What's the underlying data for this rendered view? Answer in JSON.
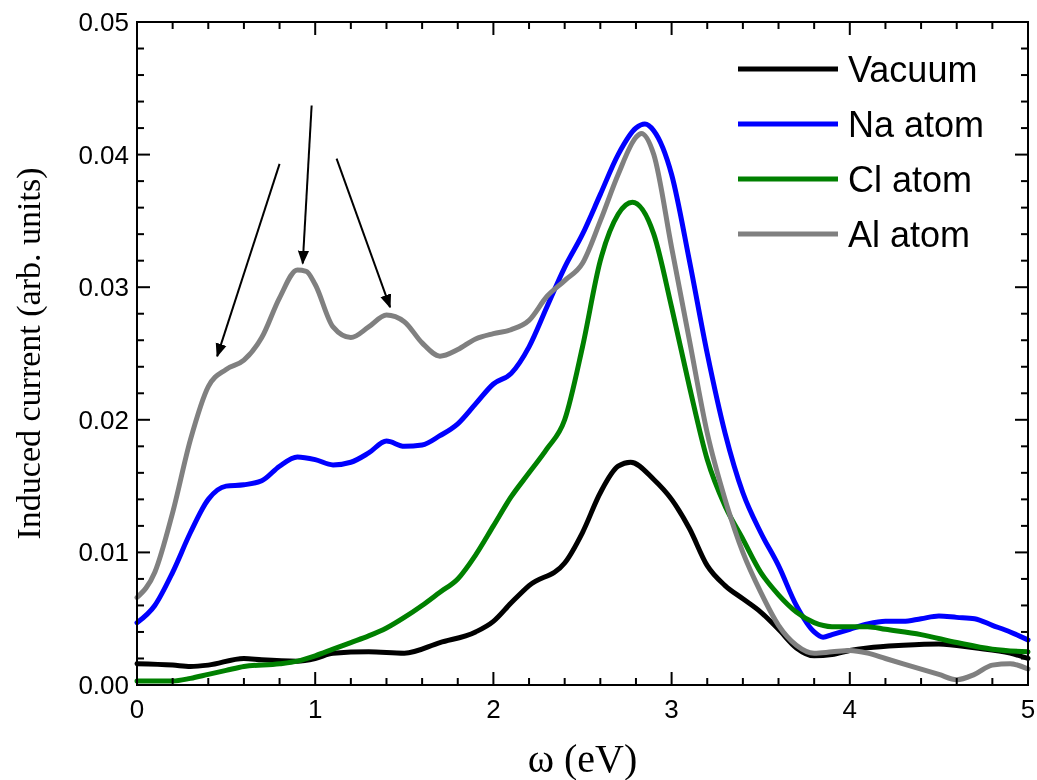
{
  "chart_data": {
    "type": "line",
    "xlabel": "ω (eV)",
    "ylabel": "Induced current (arb. units)",
    "legend": "top right",
    "grid": false,
    "line_style": "solid",
    "xlim": [
      0,
      5
    ],
    "ylim": [
      0,
      0.05
    ],
    "xticks": [
      0,
      {
        "value": 0.2,
        "label": null
      },
      {
        "value": 0.4,
        "label": null
      },
      {
        "value": 0.6,
        "label": null
      },
      {
        "value": 0.8,
        "label": null
      },
      1,
      {
        "value": 1.2,
        "label": null
      },
      {
        "value": 1.4,
        "label": null
      },
      {
        "value": 1.6,
        "label": null
      },
      {
        "value": 1.8,
        "label": null
      },
      2,
      {
        "value": 2.2,
        "label": null
      },
      {
        "value": 2.4,
        "label": null
      },
      {
        "value": 2.6,
        "label": null
      },
      {
        "value": 2.8,
        "label": null
      },
      3,
      {
        "value": 3.2,
        "label": null
      },
      {
        "value": 3.4,
        "label": null
      },
      {
        "value": 3.6,
        "label": null
      },
      {
        "value": 3.8,
        "label": null
      },
      4,
      {
        "value": 4.2,
        "label": null
      },
      {
        "value": 4.4,
        "label": null
      },
      {
        "value": 4.6,
        "label": null
      },
      {
        "value": 4.8,
        "label": null
      },
      5
    ],
    "yticks": [
      {
        "value": 0,
        "label": "0.00"
      },
      {
        "value": 0.002,
        "label": null
      },
      {
        "value": 0.004,
        "label": null
      },
      {
        "value": 0.006,
        "label": null
      },
      {
        "value": 0.008,
        "label": null
      },
      {
        "value": 0.01,
        "label": "0.01"
      },
      {
        "value": 0.012,
        "label": null
      },
      {
        "value": 0.014,
        "label": null
      },
      {
        "value": 0.016,
        "label": null
      },
      {
        "value": 0.018,
        "label": null
      },
      {
        "value": 0.02,
        "label": "0.02"
      },
      {
        "value": 0.022,
        "label": null
      },
      {
        "value": 0.024,
        "label": null
      },
      {
        "value": 0.026,
        "label": null
      },
      {
        "value": 0.028,
        "label": null
      },
      {
        "value": 0.03,
        "label": "0.03"
      },
      {
        "value": 0.032,
        "label": null
      },
      {
        "value": 0.034,
        "label": null
      },
      {
        "value": 0.036,
        "label": null
      },
      {
        "value": 0.038,
        "label": null
      },
      {
        "value": 0.04,
        "label": "0.04"
      },
      {
        "value": 0.042,
        "label": null
      },
      {
        "value": 0.044,
        "label": null
      },
      {
        "value": 0.046,
        "label": null
      },
      {
        "value": 0.048,
        "label": null
      },
      {
        "value": 0.05,
        "label": "0.05"
      }
    ],
    "series": [
      {
        "name": "Vacuum",
        "color": "#000000",
        "x": [
          0,
          0.2,
          0.3,
          0.4,
          0.6,
          0.7,
          0.9,
          1.0,
          1.1,
          1.3,
          1.5,
          1.7,
          1.9,
          2.0,
          2.1,
          2.2,
          2.4,
          2.5,
          2.6,
          2.7,
          2.77,
          2.9,
          3.0,
          3.1,
          3.2,
          3.3,
          3.4,
          3.5,
          3.6,
          3.7,
          3.8,
          3.9,
          4.0,
          4.1,
          4.3,
          4.5,
          4.7,
          4.9,
          5.0
        ],
        "values": [
          0.0016,
          0.0015,
          0.0014,
          0.0015,
          0.002,
          0.0019,
          0.0018,
          0.002,
          0.0024,
          0.0025,
          0.0024,
          0.0032,
          0.004,
          0.0048,
          0.0062,
          0.0075,
          0.0092,
          0.0115,
          0.0145,
          0.0165,
          0.0168,
          0.0155,
          0.014,
          0.0118,
          0.009,
          0.0075,
          0.0065,
          0.0055,
          0.0042,
          0.0028,
          0.0022,
          0.0023,
          0.0026,
          0.0028,
          0.003,
          0.0031,
          0.0028,
          0.0024,
          0.002
        ]
      },
      {
        "name": "Na atom",
        "color": "#0000ff",
        "x": [
          0,
          0.1,
          0.2,
          0.3,
          0.4,
          0.5,
          0.6,
          0.7,
          0.8,
          0.9,
          1.0,
          1.1,
          1.2,
          1.3,
          1.4,
          1.5,
          1.6,
          1.7,
          1.8,
          1.9,
          2.0,
          2.1,
          2.2,
          2.3,
          2.4,
          2.5,
          2.6,
          2.7,
          2.8,
          2.85,
          2.9,
          3.0,
          3.1,
          3.2,
          3.3,
          3.4,
          3.5,
          3.6,
          3.7,
          3.8,
          3.85,
          3.9,
          4.0,
          4.1,
          4.2,
          4.3,
          4.4,
          4.5,
          4.6,
          4.7,
          4.8,
          4.9,
          5.0
        ],
        "values": [
          0.0047,
          0.006,
          0.0085,
          0.0115,
          0.014,
          0.015,
          0.0151,
          0.0154,
          0.0165,
          0.0172,
          0.017,
          0.0166,
          0.0168,
          0.0175,
          0.0184,
          0.018,
          0.0181,
          0.0188,
          0.0197,
          0.0212,
          0.0227,
          0.0235,
          0.0255,
          0.0285,
          0.0315,
          0.034,
          0.037,
          0.04,
          0.042,
          0.0423,
          0.0418,
          0.0385,
          0.032,
          0.025,
          0.019,
          0.0145,
          0.0115,
          0.009,
          0.006,
          0.004,
          0.0036,
          0.0038,
          0.0042,
          0.0046,
          0.0048,
          0.0048,
          0.005,
          0.0052,
          0.0051,
          0.005,
          0.0045,
          0.004,
          0.0034
        ]
      },
      {
        "name": "Cl atom",
        "color": "#008000",
        "x": [
          0,
          0.2,
          0.3,
          0.4,
          0.5,
          0.6,
          0.8,
          0.9,
          1.0,
          1.1,
          1.2,
          1.3,
          1.4,
          1.5,
          1.6,
          1.7,
          1.8,
          1.9,
          2.0,
          2.1,
          2.2,
          2.3,
          2.4,
          2.5,
          2.6,
          2.7,
          2.78,
          2.9,
          3.0,
          3.1,
          3.2,
          3.3,
          3.4,
          3.5,
          3.6,
          3.7,
          3.8,
          3.9,
          4.0,
          4.1,
          4.2,
          4.4,
          4.6,
          4.8,
          5.0
        ],
        "values": [
          0.0003,
          0.0003,
          0.0005,
          0.0008,
          0.0011,
          0.0014,
          0.0016,
          0.0018,
          0.0022,
          0.0027,
          0.0032,
          0.0037,
          0.0043,
          0.0051,
          0.006,
          0.007,
          0.008,
          0.0098,
          0.012,
          0.0142,
          0.016,
          0.0178,
          0.02,
          0.0255,
          0.032,
          0.0355,
          0.0364,
          0.034,
          0.0285,
          0.0225,
          0.017,
          0.0135,
          0.011,
          0.0085,
          0.0068,
          0.0055,
          0.0047,
          0.0044,
          0.0044,
          0.0044,
          0.0042,
          0.0038,
          0.0032,
          0.0027,
          0.0025
        ]
      },
      {
        "name": "Al atom",
        "color": "#808080",
        "x": [
          0,
          0.1,
          0.2,
          0.3,
          0.4,
          0.5,
          0.6,
          0.7,
          0.8,
          0.9,
          0.95,
          1.0,
          1.1,
          1.2,
          1.3,
          1.4,
          1.5,
          1.6,
          1.7,
          1.8,
          1.9,
          2.0,
          2.1,
          2.2,
          2.3,
          2.4,
          2.5,
          2.6,
          2.7,
          2.8,
          2.83,
          2.9,
          3.0,
          3.1,
          3.2,
          3.3,
          3.4,
          3.5,
          3.6,
          3.7,
          3.8,
          3.9,
          4.0,
          4.1,
          4.2,
          4.3,
          4.4,
          4.5,
          4.6,
          4.7,
          4.8,
          4.9,
          5.0
        ],
        "values": [
          0.0066,
          0.0085,
          0.013,
          0.0185,
          0.0225,
          0.0238,
          0.0245,
          0.0262,
          0.0292,
          0.0313,
          0.0312,
          0.0302,
          0.027,
          0.0262,
          0.027,
          0.0279,
          0.0274,
          0.0258,
          0.0248,
          0.0253,
          0.0261,
          0.0265,
          0.0268,
          0.0275,
          0.0293,
          0.0305,
          0.0318,
          0.035,
          0.0385,
          0.0413,
          0.0416,
          0.04,
          0.033,
          0.026,
          0.019,
          0.014,
          0.01,
          0.007,
          0.0045,
          0.003,
          0.0024,
          0.0025,
          0.0026,
          0.0024,
          0.002,
          0.0016,
          0.0012,
          0.0008,
          0.0004,
          0.0008,
          0.0015,
          0.0016,
          0.0012
        ]
      }
    ]
  }
}
